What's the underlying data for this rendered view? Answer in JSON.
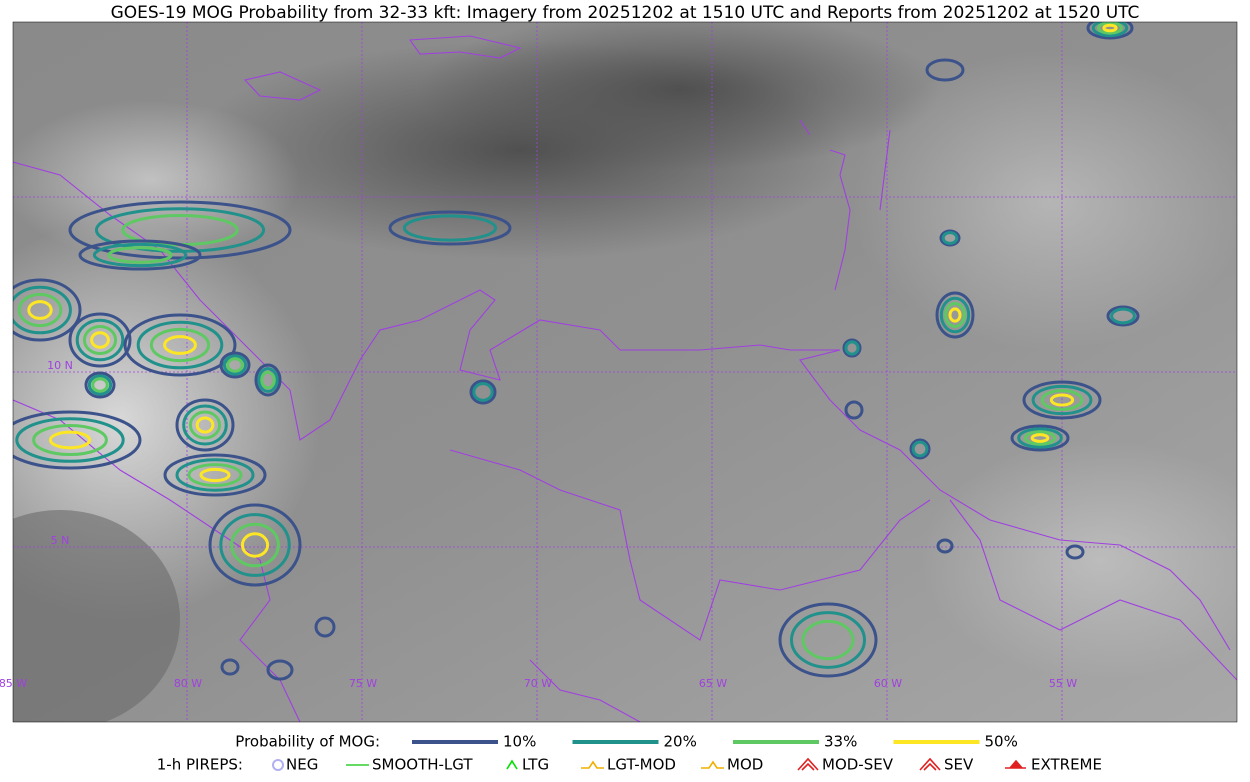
{
  "title": "GOES-19 MOG Probability from 32-33 kft: Imagery from 20251202 at 1510 UTC and Reports from 20251202 at 1520 UTC",
  "map": {
    "lat_labels": [
      "10 N",
      "5 N"
    ],
    "lon_labels": [
      "85 W",
      "80 W",
      "75 W",
      "70 W",
      "65 W",
      "60 W",
      "55 W"
    ]
  },
  "legend": {
    "probability": {
      "label": "Probability of MOG:",
      "items": [
        {
          "name": "10%",
          "color": "#3b528b"
        },
        {
          "name": "20%",
          "color": "#21918c"
        },
        {
          "name": "33%",
          "color": "#5ec962"
        },
        {
          "name": "50%",
          "color": "#fde725"
        }
      ]
    },
    "pireps": {
      "label": "1-h PIREPS:",
      "items": [
        {
          "name": "NEG",
          "color": "#b0b0f0"
        },
        {
          "name": "SMOOTH-LGT",
          "color": "#32cd32"
        },
        {
          "name": "LTG",
          "color": "#00e000"
        },
        {
          "name": "LGT-MOD",
          "color": "#f0b000"
        },
        {
          "name": "MOD",
          "color": "#f0b000"
        },
        {
          "name": "MOD-SEV",
          "color": "#e02020"
        },
        {
          "name": "SEV",
          "color": "#e02020"
        },
        {
          "name": "EXTREME",
          "color": "#e02020"
        }
      ]
    }
  }
}
